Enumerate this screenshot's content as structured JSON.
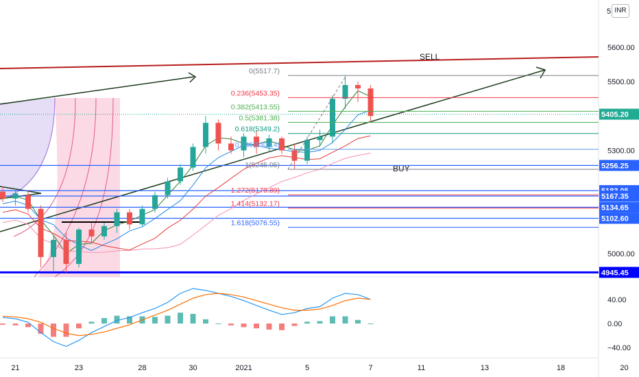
{
  "currency_button": "INR",
  "chart_data": {
    "type": "candlestick",
    "price_axis": {
      "ticks": [
        {
          "label": "5600.00",
          "value": 5600
        },
        {
          "label": "5500.00",
          "value": 5500
        },
        {
          "label": "5300.00",
          "value": 5300
        },
        {
          "label": "5000.00",
          "value": 5000
        }
      ],
      "partial_tick_label": "5"
    },
    "price_badges": [
      {
        "label": "5405.20",
        "value": 5405.2,
        "color": "#22ab94"
      },
      {
        "label": "5256.25",
        "value": 5256.25,
        "color": "#2962ff"
      },
      {
        "label": "5183.05",
        "value": 5183.05,
        "color": "#2962ff"
      },
      {
        "label": "5167.35",
        "value": 5167.35,
        "color": "#2962ff"
      },
      {
        "label": "5134.65",
        "value": 5134.65,
        "color": "#2962ff"
      },
      {
        "label": "5102.60",
        "value": 5102.6,
        "color": "#2962ff"
      },
      {
        "label": "4945.45",
        "value": 4945.45,
        "color": "#0000ff"
      }
    ],
    "x_axis": {
      "ticks": [
        {
          "label": "21",
          "idx": 1
        },
        {
          "label": "23",
          "idx": 6
        },
        {
          "label": "28",
          "idx": 11
        },
        {
          "label": "30",
          "idx": 15
        },
        {
          "label": "2021",
          "idx": 19
        },
        {
          "label": "5",
          "idx": 24
        },
        {
          "label": "7",
          "idx": 29
        },
        {
          "label": "11",
          "idx": 33
        },
        {
          "label": "13",
          "idx": 38
        },
        {
          "label": "18",
          "idx": 44
        },
        {
          "label": "20",
          "idx": 49
        }
      ]
    },
    "fib_levels": [
      {
        "label": "0(5517.7)",
        "value": 5517.7,
        "color": "#787b86"
      },
      {
        "label": "0.236(5453.35)",
        "value": 5453.35,
        "color": "#f23645"
      },
      {
        "label": "0.382(5413.55)",
        "value": 5413.55,
        "color": "#4caf50"
      },
      {
        "label": "0.5(5381.38)",
        "value": 5381.38,
        "color": "#4caf50"
      },
      {
        "label": "0.618(5349.2)",
        "value": 5349.2,
        "color": "#089981"
      },
      {
        "label": "0.786(5303.4)",
        "value": 5303.4,
        "color": "#5b9cf6"
      },
      {
        "label": "1(5245.05)",
        "value": 5245.05,
        "color": "#787b86"
      },
      {
        "label": "1.272(5170.89)",
        "value": 5170.89,
        "color": "#f23645"
      },
      {
        "label": "1.414(5132.17)",
        "value": 5132.17,
        "color": "#f23645"
      },
      {
        "label": "1.618(5076.55)",
        "value": 5076.55,
        "color": "#2962ff"
      }
    ],
    "annotations": {
      "sell": "SELL",
      "buy": "BUY"
    },
    "candles": [
      {
        "o": 5180,
        "h": 5195,
        "l": 5150,
        "c": 5160
      },
      {
        "o": 5160,
        "h": 5190,
        "l": 5140,
        "c": 5175
      },
      {
        "o": 5170,
        "h": 5185,
        "l": 5120,
        "c": 5130
      },
      {
        "o": 5130,
        "h": 5140,
        "l": 4960,
        "c": 4990
      },
      {
        "o": 4990,
        "h": 5050,
        "l": 4950,
        "c": 5040
      },
      {
        "o": 5040,
        "h": 5060,
        "l": 4945,
        "c": 4970
      },
      {
        "o": 4970,
        "h": 5075,
        "l": 4960,
        "c": 5070
      },
      {
        "o": 5070,
        "h": 5090,
        "l": 5030,
        "c": 5050
      },
      {
        "o": 5050,
        "h": 5090,
        "l": 5040,
        "c": 5080
      },
      {
        "o": 5080,
        "h": 5130,
        "l": 5060,
        "c": 5120
      },
      {
        "o": 5120,
        "h": 5130,
        "l": 5070,
        "c": 5085
      },
      {
        "o": 5085,
        "h": 5140,
        "l": 5080,
        "c": 5130
      },
      {
        "o": 5130,
        "h": 5180,
        "l": 5120,
        "c": 5170
      },
      {
        "o": 5170,
        "h": 5220,
        "l": 5160,
        "c": 5210
      },
      {
        "o": 5210,
        "h": 5260,
        "l": 5200,
        "c": 5250
      },
      {
        "o": 5250,
        "h": 5320,
        "l": 5240,
        "c": 5310
      },
      {
        "o": 5310,
        "h": 5400,
        "l": 5290,
        "c": 5380
      },
      {
        "o": 5380,
        "h": 5390,
        "l": 5300,
        "c": 5320
      },
      {
        "o": 5320,
        "h": 5340,
        "l": 5290,
        "c": 5300
      },
      {
        "o": 5300,
        "h": 5350,
        "l": 5280,
        "c": 5340
      },
      {
        "o": 5340,
        "h": 5360,
        "l": 5290,
        "c": 5310
      },
      {
        "o": 5310,
        "h": 5345,
        "l": 5295,
        "c": 5335
      },
      {
        "o": 5335,
        "h": 5340,
        "l": 5290,
        "c": 5300
      },
      {
        "o": 5300,
        "h": 5320,
        "l": 5245,
        "c": 5270
      },
      {
        "o": 5270,
        "h": 5340,
        "l": 5260,
        "c": 5330
      },
      {
        "o": 5330,
        "h": 5360,
        "l": 5310,
        "c": 5340
      },
      {
        "o": 5340,
        "h": 5460,
        "l": 5320,
        "c": 5450
      },
      {
        "o": 5450,
        "h": 5518,
        "l": 5420,
        "c": 5490
      },
      {
        "o": 5490,
        "h": 5500,
        "l": 5440,
        "c": 5480
      },
      {
        "o": 5480,
        "h": 5490,
        "l": 5380,
        "c": 5400
      }
    ],
    "macd": {
      "ticks": [
        {
          "label": "40.00",
          "value": 40
        },
        {
          "label": "0.00",
          "value": 0
        },
        {
          "label": "−40.00",
          "value": -40
        }
      ],
      "macd_line": [
        10,
        8,
        2,
        -15,
        -30,
        -38,
        -28,
        -15,
        -5,
        5,
        10,
        18,
        25,
        35,
        50,
        58,
        55,
        50,
        45,
        38,
        30,
        22,
        15,
        18,
        25,
        28,
        42,
        50,
        48,
        40
      ],
      "signal_line": [
        12,
        11,
        8,
        2,
        -8,
        -16,
        -20,
        -18,
        -14,
        -8,
        -2,
        6,
        14,
        22,
        32,
        42,
        48,
        50,
        48,
        44,
        38,
        32,
        26,
        22,
        22,
        24,
        30,
        38,
        42,
        40
      ],
      "histogram": [
        -2,
        -3,
        -6,
        -17,
        -22,
        -22,
        -8,
        3,
        9,
        13,
        12,
        12,
        11,
        13,
        18,
        16,
        7,
        0,
        -3,
        -6,
        -8,
        -10,
        -11,
        -4,
        3,
        4,
        12,
        12,
        6,
        0
      ]
    }
  }
}
